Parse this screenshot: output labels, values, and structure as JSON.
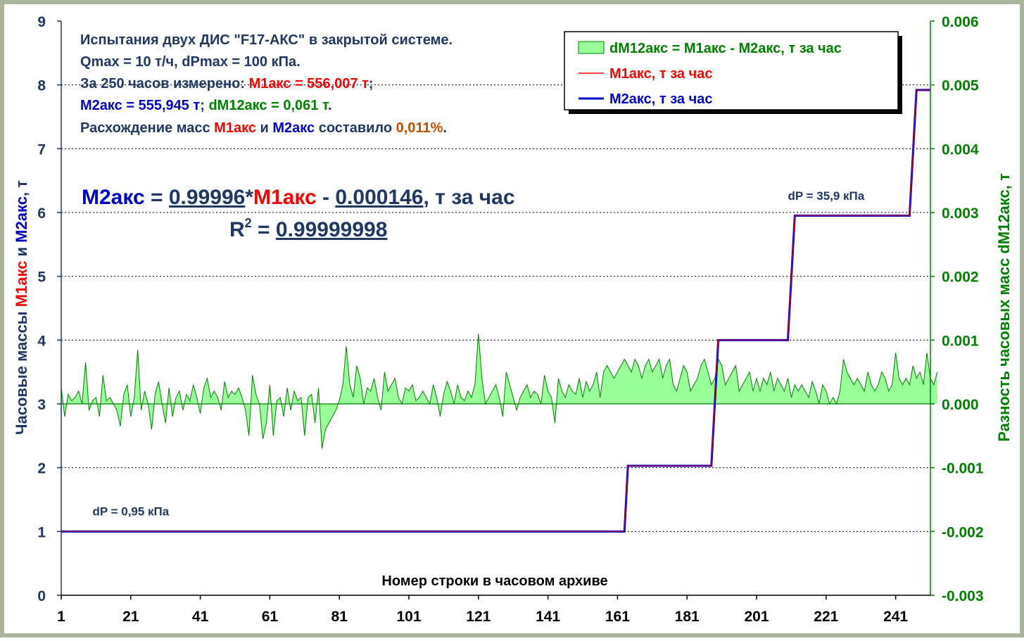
{
  "colors": {
    "frame": "#a8b59a",
    "plot_bg": "#fffff0",
    "m1": "#ff0000",
    "m2": "#0000cc",
    "diff_fill": "#99ff99",
    "diff_stroke": "#008000",
    "text_dark": "#1f3864",
    "left_axis_text": "#1f3864",
    "right_axis_text": "#008000",
    "pct": "#c05000"
  },
  "info": {
    "line1": "Испытания двух ДИС \"F17-АКС\" в закрытой системе.",
    "line2": "Qmax = 10 т/ч, dPmax = 100 кПа.",
    "line3_prefix": "За 250 часов измерено: ",
    "line3_m1": "М1акс = 556,007 т",
    "line3_suffix": ";",
    "line4_m2": "М2акс = 555,945 т",
    "line4_sep": "; ",
    "line4_d": "dM12акс = 0,061 т",
    "line4_end": ".",
    "line5_prefix": "Расхождение масс ",
    "line5_m1": "М1акс",
    "line5_and": " и ",
    "line5_m2": "М2акс",
    "line5_mid": " составило ",
    "line5_pct": "0,011%",
    "line5_end": "."
  },
  "equation": {
    "m2": "М2акс",
    "eq": " = ",
    "slope": "0.99996",
    "star": "*",
    "m1": "М1акс",
    "minus": " - ",
    "intercept": "0.000146",
    "unit": ", т за час",
    "r2_r": "R",
    "r2_sup": "2",
    "r2_eq": " = ",
    "r2_value": "0.99999998"
  },
  "chart_data": {
    "type": "line",
    "xlabel": "Номер строки в часовом архиве",
    "ylabel_left_parts": [
      "Часовые массы ",
      "М1акс",
      " и ",
      "М2акс",
      ", т"
    ],
    "ylabel_right": "Разность часовых масс dM12акс, т",
    "xlim": [
      1,
      251
    ],
    "x_ticks": [
      "1",
      "21",
      "41",
      "61",
      "81",
      "101",
      "121",
      "141",
      "161",
      "181",
      "201",
      "221",
      "241"
    ],
    "ylim_left": [
      0,
      9
    ],
    "y_ticks_left": [
      "0",
      "1",
      "2",
      "3",
      "4",
      "5",
      "6",
      "7",
      "8",
      "9"
    ],
    "ylim_right": [
      -0.003,
      0.006
    ],
    "y_ticks_right": [
      "-0.003",
      "-0.002",
      "-0.001",
      "0.000",
      "0.001",
      "0.002",
      "0.003",
      "0.004",
      "0.005",
      "0.006"
    ],
    "grid": "horizontal dotted",
    "legend_position": "top-right",
    "series": [
      {
        "name": "dM12акс = М1акс - М2акс, т за час",
        "axis": "right",
        "style": "area",
        "values": [
          0.00025,
          -0.0002,
          0.00015,
          5e-05,
          0.0001,
          0.0002,
          0.0,
          0.00065,
          -0.0001,
          5e-05,
          0.0001,
          -0.0002,
          0.00045,
          5e-05,
          0.0001,
          0.0,
          -0.0001,
          -0.00035,
          0.00015,
          0.0003,
          -0.0002,
          0.0001,
          0.00085,
          -0.0001,
          0.0002,
          0.0,
          -0.0004,
          0.00015,
          0.00035,
          0.0,
          -0.0003,
          0.00025,
          -0.0002,
          0.0001,
          0.0002,
          -0.0001,
          0.00015,
          5e-05,
          0.0003,
          0.0001,
          -0.00015,
          0.00025,
          0.0004,
          0.0001,
          0.0002,
          0.0001,
          -0.0001,
          0.00035,
          0.0001,
          0.0002,
          0.00015,
          0.00025,
          0.0001,
          -0.0001,
          -0.0005,
          0.00045,
          0.00015,
          0.0,
          -0.00055,
          -0.0003,
          0.0003,
          -0.0005,
          5e-05,
          0.0001,
          -0.0002,
          0.00025,
          -0.0001,
          0.0002,
          5e-05,
          0.0001,
          -0.0005,
          0.0001,
          0.00015,
          -0.0003,
          0.00025,
          -0.0007,
          -0.0004,
          -0.0003,
          -0.0002,
          -0.0001,
          5e-05,
          0.0003,
          0.0009,
          0.0003,
          0.0001,
          0.0006,
          0.0004,
          0.0,
          0.00025,
          0.0002,
          0.0004,
          0.0001,
          -0.0001,
          0.0005,
          0.0002,
          0.0003,
          0.0004,
          0.0001,
          0.0,
          0.00025,
          0.0002,
          0.0003,
          5e-05,
          0.0001,
          0.0002,
          0.0001,
          0.0,
          0.0003,
          0.0001,
          -0.0002,
          0.00015,
          0.00035,
          0.0002,
          0.0,
          0.0003,
          0.0001,
          5e-05,
          0.0002,
          0.0001,
          0.0003,
          0.0011,
          0.0004,
          0.0,
          0.0001,
          0.0002,
          0.0003,
          0.0001,
          -0.0002,
          0.0005,
          0.0003,
          0.0001,
          -0.0001,
          0.0001,
          0.0002,
          0.0003,
          0.0001,
          0.0002,
          0.00015,
          0.0,
          0.00045,
          0.0002,
          0.0001,
          -0.0003,
          0.0004,
          0.0002,
          0.0001,
          0.0003,
          0.0002,
          0.00015,
          0.0004,
          0.0001,
          0.00035,
          0.0002,
          0.0003,
          0.0005,
          0.0001,
          0.0005,
          0.0006,
          0.0005,
          0.0004,
          0.0005,
          0.0006,
          0.0007,
          0.0006,
          0.0005,
          0.0007,
          0.0006,
          0.0004,
          0.0006,
          0.0007,
          0.0005,
          0.0006,
          0.0007,
          0.0004,
          0.0006,
          0.0007,
          0.0003,
          0.0002,
          0.0004,
          0.0006,
          0.0005,
          0.0002,
          0.0003,
          0.0004,
          0.0006,
          0.0007,
          0.0005,
          0.0003,
          0.0004,
          0.0007,
          0.0006,
          0.0003,
          0.0004,
          0.0005,
          0.0006,
          0.0002,
          0.0003,
          0.0004,
          0.0005,
          0.0002,
          0.0004,
          0.0002,
          0.0004,
          0.0003,
          0.0005,
          0.0002,
          0.0004,
          0.0003,
          0.0002,
          0.0004,
          0.0001,
          0.0003,
          0.0002,
          0.0003,
          0.0002,
          0.0001,
          0.00035,
          0.0002,
          0.0,
          0.0003,
          0.0002,
          0.0,
          0.0001,
          0.0,
          0.0002,
          0.0007,
          0.0005,
          0.0004,
          0.0003,
          0.0004,
          0.0003,
          0.0002,
          0.0005,
          0.0003,
          0.0002,
          0.0003,
          0.0005,
          0.0004,
          0.0002,
          0.0003,
          0.0008,
          0.0004,
          0.0003,
          0.0004,
          0.0003,
          0.0006,
          0.0004,
          0.0005,
          0.0003,
          0.0008,
          0.0004,
          0.0003,
          0.0005
        ]
      },
      {
        "name": "М1акс, т за час",
        "axis": "left",
        "style": "line",
        "steps": [
          [
            1,
            1.0
          ],
          [
            163,
            1.0
          ],
          [
            164,
            2.03
          ],
          [
            188,
            2.03
          ],
          [
            190,
            4.0
          ],
          [
            210,
            4.0
          ],
          [
            212,
            5.95
          ],
          [
            245,
            5.95
          ],
          [
            247,
            7.92
          ],
          [
            251,
            7.92
          ]
        ]
      },
      {
        "name": "М2акс, т за час",
        "axis": "left",
        "style": "line",
        "steps": [
          [
            1,
            1.0
          ],
          [
            163,
            1.0
          ],
          [
            164,
            2.03
          ],
          [
            188,
            2.03
          ],
          [
            190,
            4.0
          ],
          [
            210,
            4.0
          ],
          [
            212,
            5.95
          ],
          [
            245,
            5.95
          ],
          [
            247,
            7.92
          ],
          [
            251,
            7.92
          ]
        ]
      }
    ],
    "annotations": [
      {
        "text": "dP = 0,95 кПа",
        "x": 10,
        "y": 1.25,
        "axis": "left"
      },
      {
        "text": "dP = 35,9 кПа",
        "x": 210,
        "y": 6.2,
        "axis": "left"
      }
    ]
  }
}
